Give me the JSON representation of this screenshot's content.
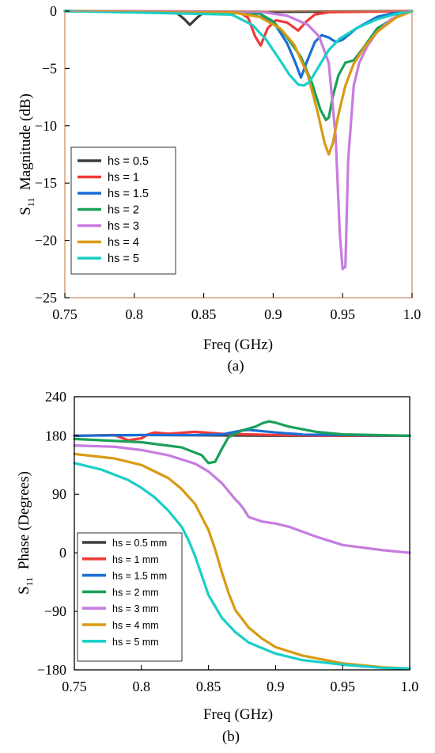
{
  "chart_data": [
    {
      "type": "line",
      "caption": "(a)",
      "xlabel": "Freq (GHz)",
      "ylabel": "S11 Magnitude (dB)",
      "ylabel_main": "S",
      "ylabel_sub": "11",
      "ylabel_rest": "  Magnitude (dB)",
      "xlim": [
        0.75,
        1.0
      ],
      "ylim": [
        -25,
        0
      ],
      "xticks": [
        "0.75",
        "0.8",
        "0.85",
        "0.9",
        "0.95",
        "1.0"
      ],
      "yticks": [
        "0",
        "−5",
        "−10",
        "−15",
        "−20",
        "−25"
      ],
      "xtick_values": [
        0.75,
        0.8,
        0.85,
        0.9,
        0.95,
        1.0
      ],
      "ytick_values": [
        0,
        -5,
        -10,
        -15,
        -20,
        -25
      ],
      "legend_position": "bottom-left",
      "series": [
        {
          "name": "hs = 0.5",
          "color": "#3d3d3d",
          "x": [
            0.75,
            0.83,
            0.836,
            0.84,
            0.845,
            0.85,
            1.0
          ],
          "y": [
            0,
            -0.1,
            -0.7,
            -1.2,
            -0.6,
            -0.1,
            0
          ]
        },
        {
          "name": "hs = 1",
          "color": "#f03a3a",
          "x": [
            0.75,
            0.875,
            0.882,
            0.887,
            0.891,
            0.896,
            0.902,
            0.91,
            0.918,
            0.924,
            0.93,
            0.94,
            1.0
          ],
          "y": [
            0,
            -0.05,
            -0.6,
            -2.2,
            -3.0,
            -1.5,
            -0.8,
            -1.0,
            -1.7,
            -0.9,
            -0.3,
            -0.1,
            0
          ]
        },
        {
          "name": "hs = 1.5",
          "color": "#1a6fd6",
          "x": [
            0.75,
            0.88,
            0.9,
            0.91,
            0.916,
            0.92,
            0.924,
            0.93,
            0.935,
            0.94,
            0.945,
            0.95,
            0.96,
            0.975,
            0.99,
            1.0
          ],
          "y": [
            0,
            -0.1,
            -0.9,
            -2.8,
            -4.5,
            -5.8,
            -4.5,
            -2.7,
            -2.1,
            -2.3,
            -2.7,
            -2.5,
            -1.5,
            -0.5,
            -0.1,
            0
          ]
        },
        {
          "name": "hs = 2",
          "color": "#1aa05a",
          "x": [
            0.75,
            0.89,
            0.9,
            0.91,
            0.92,
            0.928,
            0.934,
            0.938,
            0.94,
            0.943,
            0.947,
            0.952,
            0.958,
            0.965,
            0.975,
            0.99,
            1.0
          ],
          "y": [
            0,
            -0.2,
            -0.9,
            -2.3,
            -4.0,
            -6.3,
            -8.6,
            -9.5,
            -9.3,
            -7.4,
            -5.6,
            -4.5,
            -4.3,
            -3.2,
            -1.5,
            -0.4,
            0
          ]
        },
        {
          "name": "hs = 3",
          "color": "#c77ce0",
          "x": [
            0.75,
            0.89,
            0.91,
            0.925,
            0.933,
            0.94,
            0.945,
            0.948,
            0.95,
            0.952,
            0.954,
            0.958,
            0.962,
            0.968,
            0.975,
            0.985,
            1.0
          ],
          "y": [
            0,
            -0.05,
            -0.4,
            -1.2,
            -2.2,
            -4.5,
            -11.0,
            -19.5,
            -22.5,
            -22.3,
            -13.0,
            -6.5,
            -4.5,
            -3.0,
            -1.8,
            -0.7,
            0
          ]
        },
        {
          "name": "hs = 4",
          "color": "#d99a14",
          "x": [
            0.75,
            0.87,
            0.89,
            0.905,
            0.915,
            0.925,
            0.932,
            0.937,
            0.94,
            0.943,
            0.947,
            0.952,
            0.958,
            0.966,
            0.975,
            0.988,
            1.0
          ],
          "y": [
            0,
            -0.1,
            -0.5,
            -1.5,
            -2.9,
            -5.6,
            -8.8,
            -11.5,
            -12.5,
            -11.5,
            -9.0,
            -6.5,
            -4.6,
            -3.1,
            -1.8,
            -0.6,
            0
          ]
        },
        {
          "name": "hs = 5",
          "color": "#19cfc6",
          "x": [
            0.75,
            0.87,
            0.885,
            0.895,
            0.905,
            0.912,
            0.918,
            0.922,
            0.926,
            0.932,
            0.94,
            0.948,
            0.96,
            0.975,
            0.99,
            1.0
          ],
          "y": [
            0,
            -0.3,
            -1.2,
            -2.5,
            -4.3,
            -5.6,
            -6.4,
            -6.5,
            -6.2,
            -5.0,
            -3.4,
            -2.4,
            -1.5,
            -0.7,
            -0.2,
            0
          ]
        }
      ]
    },
    {
      "type": "line",
      "caption": "(b)",
      "xlabel": "Freq (GHz)",
      "ylabel": "S11 Phase (Degrees)",
      "ylabel_main": "S",
      "ylabel_sub": "11",
      "ylabel_rest": "  Phase (Degrees)",
      "xlim": [
        0.75,
        1.0
      ],
      "ylim": [
        -180,
        240
      ],
      "xticks": [
        "0.75",
        "0.8",
        "0.85",
        "0.9",
        "0.95",
        "1.0"
      ],
      "yticks": [
        "240",
        "180",
        "90",
        "0",
        "−90",
        "−180"
      ],
      "xtick_values": [
        0.75,
        0.8,
        0.85,
        0.9,
        0.95,
        1.0
      ],
      "ytick_values": [
        240,
        180,
        90,
        0,
        -90,
        -180
      ],
      "legend_position": "bottom-left",
      "series": [
        {
          "name": "hs = 0.5 mm",
          "color": "#3d3d3d",
          "x": [
            0.75,
            0.8,
            0.9,
            1.0
          ],
          "y": [
            180,
            181,
            180,
            180
          ]
        },
        {
          "name": "hs = 1 mm",
          "color": "#f03a3a",
          "x": [
            0.75,
            0.78,
            0.79,
            0.8,
            0.805,
            0.81,
            0.82,
            0.84,
            0.86,
            0.88,
            0.9,
            0.95,
            1.0
          ],
          "y": [
            180,
            181,
            173,
            176,
            182,
            185,
            183,
            186,
            183,
            182,
            181,
            180,
            180
          ]
        },
        {
          "name": "hs = 1.5 mm",
          "color": "#1a6fd6",
          "x": [
            0.75,
            0.8,
            0.84,
            0.86,
            0.87,
            0.875,
            0.88,
            0.89,
            0.9,
            0.92,
            0.95,
            1.0
          ],
          "y": [
            180,
            181,
            181,
            182,
            186,
            188,
            189,
            187,
            185,
            182,
            181,
            180
          ]
        },
        {
          "name": "hs = 2 mm",
          "color": "#1aa05a",
          "x": [
            0.75,
            0.8,
            0.83,
            0.845,
            0.85,
            0.855,
            0.86,
            0.865,
            0.875,
            0.885,
            0.89,
            0.895,
            0.9,
            0.91,
            0.93,
            0.95,
            1.0
          ],
          "y": [
            175,
            170,
            162,
            150,
            138,
            140,
            160,
            178,
            188,
            194,
            199,
            202,
            200,
            194,
            186,
            182,
            180
          ]
        },
        {
          "name": "hs = 3 mm",
          "color": "#c77ce0",
          "x": [
            0.75,
            0.78,
            0.8,
            0.82,
            0.84,
            0.85,
            0.86,
            0.87,
            0.873,
            0.876,
            0.88,
            0.89,
            0.9,
            0.91,
            0.93,
            0.95,
            0.98,
            1.0
          ],
          "y": [
            165,
            163,
            158,
            150,
            137,
            125,
            107,
            82,
            76,
            68,
            55,
            48,
            45,
            40,
            25,
            12,
            4,
            0
          ]
        },
        {
          "name": "hs = 4 mm",
          "color": "#d99a14",
          "x": [
            0.75,
            0.78,
            0.8,
            0.82,
            0.83,
            0.84,
            0.85,
            0.855,
            0.86,
            0.865,
            0.87,
            0.88,
            0.89,
            0.9,
            0.92,
            0.95,
            0.98,
            1.0
          ],
          "y": [
            152,
            145,
            135,
            115,
            98,
            75,
            35,
            5,
            -30,
            -62,
            -88,
            -115,
            -132,
            -145,
            -158,
            -170,
            -176,
            -178
          ]
        },
        {
          "name": "hs = 5 mm",
          "color": "#19cfc6",
          "x": [
            0.75,
            0.77,
            0.79,
            0.8,
            0.81,
            0.82,
            0.83,
            0.835,
            0.84,
            0.845,
            0.85,
            0.86,
            0.87,
            0.88,
            0.9,
            0.92,
            0.95,
            0.98,
            1.0
          ],
          "y": [
            138,
            128,
            112,
            100,
            85,
            65,
            40,
            20,
            -5,
            -35,
            -65,
            -100,
            -122,
            -138,
            -155,
            -165,
            -172,
            -177,
            -178
          ]
        }
      ]
    }
  ]
}
